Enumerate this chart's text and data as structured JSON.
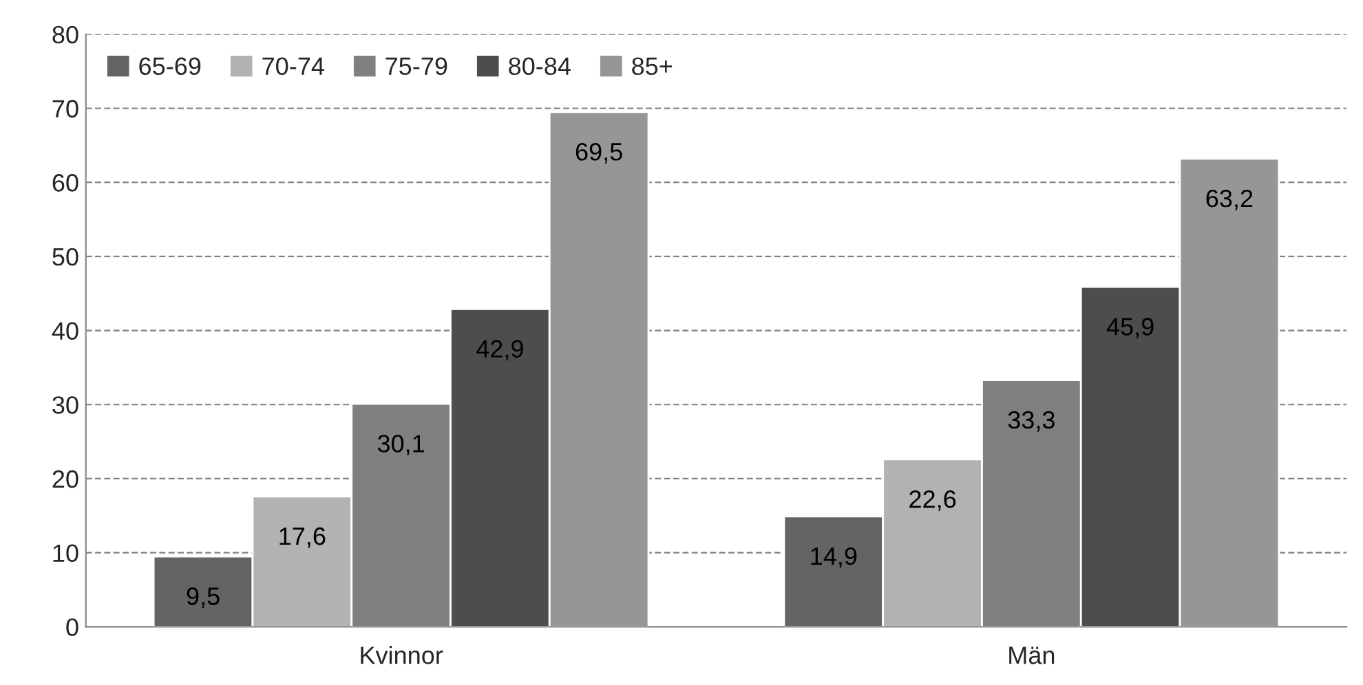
{
  "chart_data": {
    "type": "bar",
    "categories": [
      "Kvinnor",
      "Män"
    ],
    "series": [
      {
        "name": "65-69",
        "color": "#646464",
        "values": [
          9.5,
          14.9
        ],
        "value_labels": [
          "9,5",
          "14,9"
        ]
      },
      {
        "name": "70-74",
        "color": "#b2b2b2",
        "values": [
          17.6,
          22.6
        ],
        "value_labels": [
          "17,6",
          "22,6"
        ]
      },
      {
        "name": "75-79",
        "color": "#808080",
        "values": [
          30.1,
          33.3
        ],
        "value_labels": [
          "30,1",
          "33,3"
        ]
      },
      {
        "name": "80-84",
        "color": "#4d4d4d",
        "values": [
          42.9,
          45.9
        ],
        "value_labels": [
          "42,9",
          "45,9"
        ]
      },
      {
        "name": "85+",
        "color": "#969696",
        "values": [
          69.5,
          63.2
        ],
        "value_labels": [
          "69,5",
          "63,2"
        ]
      }
    ],
    "ylim": [
      0,
      80
    ],
    "yticks": [
      0,
      10,
      20,
      30,
      40,
      50,
      60,
      70,
      80
    ],
    "grid": "y",
    "legend": "top left"
  }
}
